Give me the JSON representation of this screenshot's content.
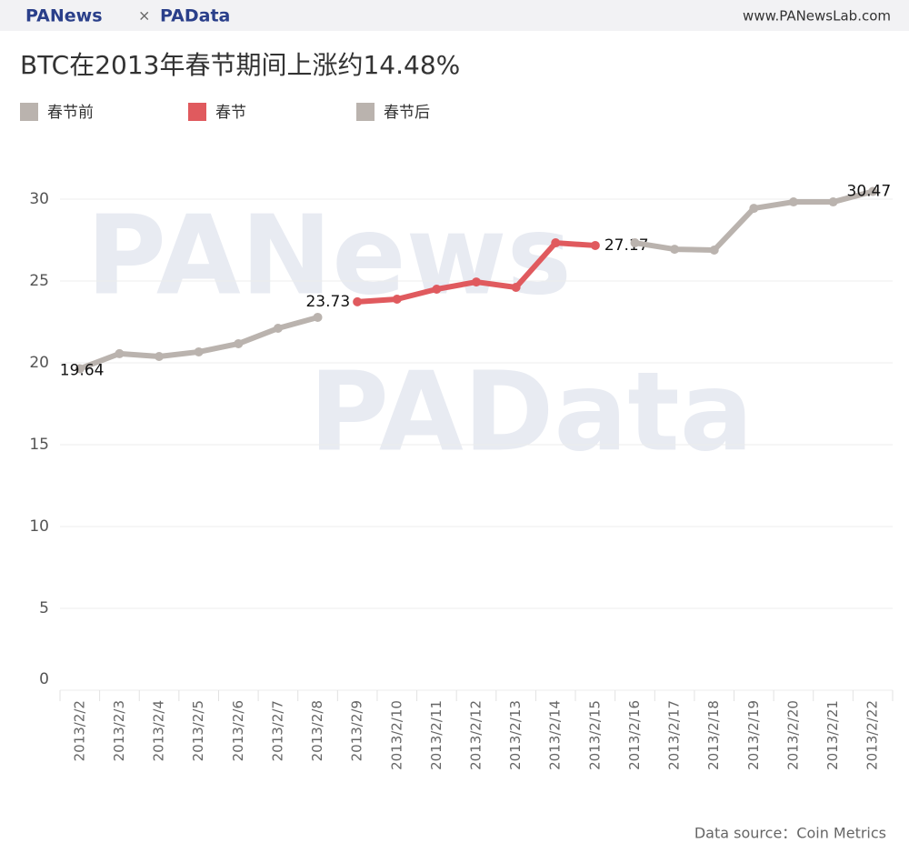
{
  "header": {
    "logo_left": "PANews",
    "separator": "×",
    "logo_right": "PAData",
    "site": "www.PANewsLab.com"
  },
  "watermarks": [
    "PANews",
    "PAData"
  ],
  "source": "Data source：Coin Metrics",
  "chart_data": {
    "type": "line",
    "title": "BTC在2013年春节期间上涨约14.48%",
    "categories": [
      "2013/2/2",
      "2013/2/3",
      "2013/2/4",
      "2013/2/5",
      "2013/2/6",
      "2013/2/7",
      "2013/2/8",
      "2013/2/9",
      "2013/2/10",
      "2013/2/11",
      "2013/2/12",
      "2013/2/13",
      "2013/2/14",
      "2013/2/15",
      "2013/2/16",
      "2013/2/17",
      "2013/2/18",
      "2013/2/19",
      "2013/2/20",
      "2013/2/21",
      "2013/2/22"
    ],
    "series": [
      {
        "name": "春节前",
        "color": "#bab3ae",
        "values": [
          19.64,
          20.56,
          20.39,
          20.67,
          21.17,
          22.11,
          22.78,
          null,
          null,
          null,
          null,
          null,
          null,
          null,
          null,
          null,
          null,
          null,
          null,
          null,
          null
        ]
      },
      {
        "name": "春节",
        "color": "#e05a5e",
        "values": [
          null,
          null,
          null,
          null,
          null,
          null,
          null,
          23.73,
          23.89,
          24.5,
          24.94,
          24.61,
          27.33,
          27.17,
          null,
          null,
          null,
          null,
          null,
          null,
          null
        ]
      },
      {
        "name": "春节后",
        "color": "#bab3ae",
        "values": [
          null,
          null,
          null,
          null,
          null,
          null,
          null,
          null,
          null,
          null,
          null,
          null,
          null,
          null,
          27.33,
          26.94,
          26.89,
          29.44,
          29.83,
          29.83,
          30.47
        ]
      }
    ],
    "ylim": [
      0,
      33
    ],
    "yticks": [
      0,
      5,
      10,
      15,
      20,
      25,
      30
    ],
    "grid": true
  }
}
